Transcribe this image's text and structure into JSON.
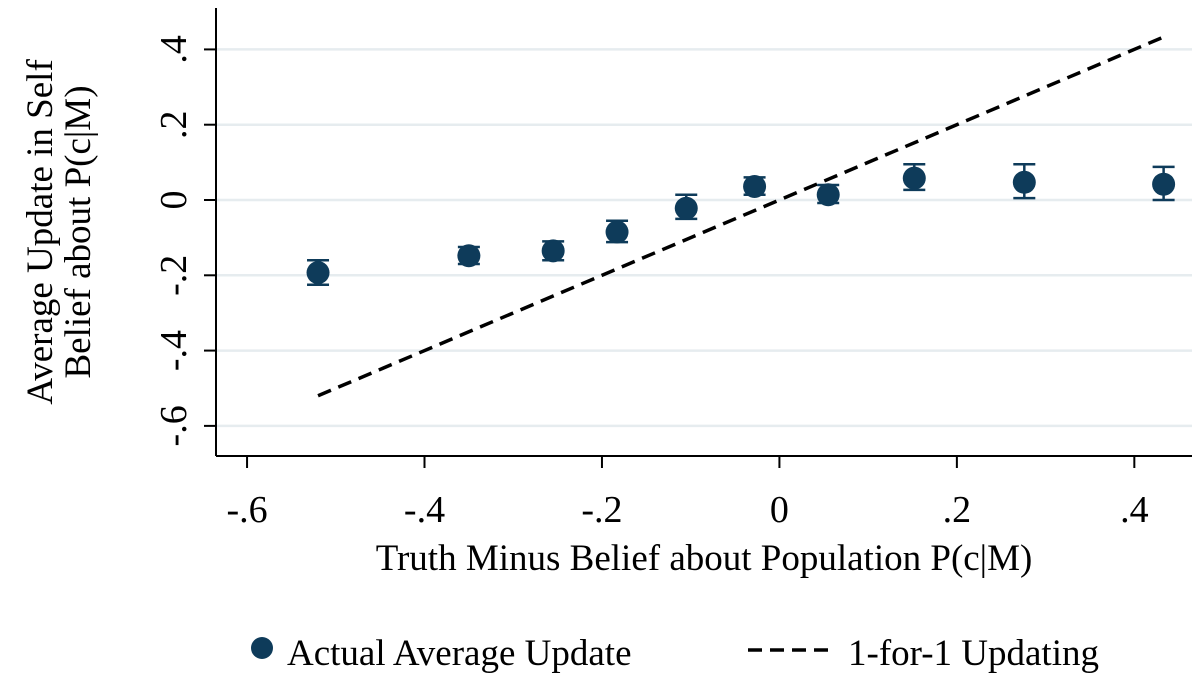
{
  "chart_data": {
    "type": "scatter",
    "title": "",
    "xlabel": "Truth Minus Belief about Population P(c|M)",
    "ylabel_lines": [
      "Average Update in Self",
      "Belief about P(c|M)"
    ],
    "xlim": [
      -0.635,
      0.465
    ],
    "ylim": [
      -0.68,
      0.51
    ],
    "x_ticks": [
      -0.6,
      -0.4,
      -0.2,
      0,
      0.2,
      0.4
    ],
    "x_tick_labels": [
      "-.6",
      "-.4",
      "-.2",
      "0",
      ".2",
      ".4"
    ],
    "y_ticks": [
      -0.6,
      -0.4,
      -0.2,
      0,
      0.2,
      0.4
    ],
    "y_tick_labels": [
      "-.6",
      "-.4",
      "-.2",
      "0",
      ".2",
      ".4"
    ],
    "grid": true,
    "series": [
      {
        "name": "Actual Average Update",
        "kind": "scatter_with_error_bars",
        "color": "#0e3b5a",
        "x": [
          -0.52,
          -0.35,
          -0.255,
          -0.183,
          -0.105,
          -0.028,
          0.055,
          0.152,
          0.276,
          0.433
        ],
        "y": [
          -0.193,
          -0.148,
          -0.135,
          -0.085,
          -0.022,
          0.036,
          0.014,
          0.058,
          0.047,
          0.042
        ],
        "y_low": [
          -0.225,
          -0.17,
          -0.16,
          -0.112,
          -0.05,
          0.014,
          -0.008,
          0.027,
          0.005,
          0.0
        ],
        "y_high": [
          -0.16,
          -0.125,
          -0.11,
          -0.055,
          0.014,
          0.06,
          0.04,
          0.095,
          0.095,
          0.088
        ]
      },
      {
        "name": "1-for-1 Updating",
        "kind": "dashed_line",
        "color": "#000000",
        "x": [
          -0.52,
          0.433
        ],
        "y": [
          -0.52,
          0.433
        ]
      }
    ],
    "legend_position": "bottom"
  }
}
